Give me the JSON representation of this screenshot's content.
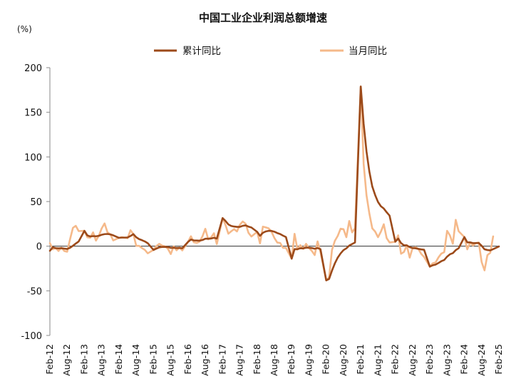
{
  "chart_data": {
    "type": "line",
    "title": "中国工业企业利润总额增速",
    "unit": "(%)",
    "ylim": [
      -100,
      200
    ],
    "yticks": [
      200,
      150,
      100,
      50,
      0,
      -50,
      -100
    ],
    "xtick_labels": [
      "Feb-12",
      "Aug-12",
      "Feb-13",
      "Aug-13",
      "Feb-14",
      "Aug-14",
      "Feb-15",
      "Aug-15",
      "Feb-16",
      "Aug-16",
      "Feb-17",
      "Aug-17",
      "Feb-18",
      "Aug-18",
      "Feb-19",
      "Aug-19",
      "Feb-20",
      "Aug-20",
      "Feb-21",
      "Aug-21",
      "Feb-22",
      "Aug-22",
      "Feb-23",
      "Aug-23",
      "Feb-24",
      "Aug-24",
      "Feb-25"
    ],
    "x_start": "2012-02",
    "x_end": "2025-02",
    "legend_position": "top",
    "series": [
      {
        "name": "累计同比",
        "color": "#9c4a1a",
        "points": [
          [
            "2012-02",
            -5.2
          ],
          [
            "2012-03",
            -1.3
          ],
          [
            "2012-04",
            -2.2
          ],
          [
            "2012-05",
            -2.4
          ],
          [
            "2012-06",
            -2.2
          ],
          [
            "2012-07",
            -2.7
          ],
          [
            "2012-08",
            -3.1
          ],
          [
            "2012-09",
            -1.8
          ],
          [
            "2012-10",
            0.5
          ],
          [
            "2012-11",
            3.0
          ],
          [
            "2012-12",
            5.3
          ],
          [
            "2013-02",
            17.2
          ],
          [
            "2013-03",
            12.1
          ],
          [
            "2013-04",
            10.9
          ],
          [
            "2013-05",
            11.3
          ],
          [
            "2013-06",
            11.1
          ],
          [
            "2013-07",
            11.6
          ],
          [
            "2013-08",
            12.8
          ],
          [
            "2013-09",
            13.5
          ],
          [
            "2013-10",
            13.7
          ],
          [
            "2013-11",
            13.2
          ],
          [
            "2013-12",
            12.2
          ],
          [
            "2014-02",
            9.4
          ],
          [
            "2014-03",
            9.6
          ],
          [
            "2014-04",
            9.6
          ],
          [
            "2014-05",
            9.8
          ],
          [
            "2014-06",
            11.4
          ],
          [
            "2014-07",
            13.5
          ],
          [
            "2014-08",
            10.0
          ],
          [
            "2014-09",
            7.9
          ],
          [
            "2014-10",
            6.7
          ],
          [
            "2014-11",
            5.3
          ],
          [
            "2014-12",
            3.3
          ],
          [
            "2015-02",
            -4.2
          ],
          [
            "2015-03",
            -2.7
          ],
          [
            "2015-04",
            -1.3
          ],
          [
            "2015-05",
            -0.8
          ],
          [
            "2015-06",
            -0.7
          ],
          [
            "2015-07",
            -1.0
          ],
          [
            "2015-08",
            -1.9
          ],
          [
            "2015-09",
            -1.7
          ],
          [
            "2015-10",
            -2.0
          ],
          [
            "2015-11",
            -1.9
          ],
          [
            "2015-12",
            -2.3
          ],
          [
            "2016-02",
            4.8
          ],
          [
            "2016-03",
            7.4
          ],
          [
            "2016-04",
            6.5
          ],
          [
            "2016-05",
            6.4
          ],
          [
            "2016-06",
            6.2
          ],
          [
            "2016-07",
            6.9
          ],
          [
            "2016-08",
            8.4
          ],
          [
            "2016-09",
            8.4
          ],
          [
            "2016-10",
            8.6
          ],
          [
            "2016-11",
            9.4
          ],
          [
            "2016-12",
            8.5
          ],
          [
            "2017-02",
            31.5
          ],
          [
            "2017-03",
            28.3
          ],
          [
            "2017-04",
            24.4
          ],
          [
            "2017-05",
            22.7
          ],
          [
            "2017-06",
            22.0
          ],
          [
            "2017-07",
            21.6
          ],
          [
            "2017-08",
            21.6
          ],
          [
            "2017-09",
            22.8
          ],
          [
            "2017-10",
            23.3
          ],
          [
            "2017-11",
            21.9
          ],
          [
            "2017-12",
            21.0
          ],
          [
            "2018-02",
            16.1
          ],
          [
            "2018-03",
            11.6
          ],
          [
            "2018-04",
            15.0
          ],
          [
            "2018-05",
            16.5
          ],
          [
            "2018-06",
            17.2
          ],
          [
            "2018-07",
            17.1
          ],
          [
            "2018-08",
            16.2
          ],
          [
            "2018-09",
            14.7
          ],
          [
            "2018-10",
            13.6
          ],
          [
            "2018-11",
            11.8
          ],
          [
            "2018-12",
            10.3
          ],
          [
            "2019-02",
            -14.0
          ],
          [
            "2019-03",
            -3.3
          ],
          [
            "2019-04",
            -3.4
          ],
          [
            "2019-05",
            -2.3
          ],
          [
            "2019-06",
            -2.4
          ],
          [
            "2019-07",
            -1.7
          ],
          [
            "2019-08",
            -1.7
          ],
          [
            "2019-09",
            -2.1
          ],
          [
            "2019-10",
            -2.9
          ],
          [
            "2019-11",
            -2.1
          ],
          [
            "2019-12",
            -3.3
          ],
          [
            "2020-02",
            -38.3
          ],
          [
            "2020-03",
            -36.7
          ],
          [
            "2020-04",
            -27.4
          ],
          [
            "2020-05",
            -19.3
          ],
          [
            "2020-06",
            -12.8
          ],
          [
            "2020-07",
            -8.1
          ],
          [
            "2020-08",
            -4.4
          ],
          [
            "2020-09",
            -2.4
          ],
          [
            "2020-10",
            0.7
          ],
          [
            "2020-11",
            2.4
          ],
          [
            "2020-12",
            4.1
          ],
          [
            "2021-02",
            178.9
          ],
          [
            "2021-03",
            137.3
          ],
          [
            "2021-04",
            106.0
          ],
          [
            "2021-05",
            83.4
          ],
          [
            "2021-06",
            66.9
          ],
          [
            "2021-07",
            57.3
          ],
          [
            "2021-08",
            49.5
          ],
          [
            "2021-09",
            44.7
          ],
          [
            "2021-10",
            42.2
          ],
          [
            "2021-11",
            38.0
          ],
          [
            "2021-12",
            34.3
          ],
          [
            "2022-02",
            5.0
          ],
          [
            "2022-03",
            8.5
          ],
          [
            "2022-04",
            3.5
          ],
          [
            "2022-05",
            1.0
          ],
          [
            "2022-06",
            1.0
          ],
          [
            "2022-07",
            -1.1
          ],
          [
            "2022-08",
            -2.1
          ],
          [
            "2022-09",
            -2.3
          ],
          [
            "2022-10",
            -3.0
          ],
          [
            "2022-11",
            -3.6
          ],
          [
            "2022-12",
            -4.0
          ],
          [
            "2023-02",
            -22.9
          ],
          [
            "2023-03",
            -21.4
          ],
          [
            "2023-04",
            -20.6
          ],
          [
            "2023-05",
            -18.8
          ],
          [
            "2023-06",
            -16.8
          ],
          [
            "2023-07",
            -15.5
          ],
          [
            "2023-08",
            -11.7
          ],
          [
            "2023-09",
            -9.0
          ],
          [
            "2023-10",
            -7.8
          ],
          [
            "2023-11",
            -4.4
          ],
          [
            "2023-12",
            -2.3
          ],
          [
            "2024-02",
            10.2
          ],
          [
            "2024-03",
            4.3
          ],
          [
            "2024-04",
            4.3
          ],
          [
            "2024-05",
            3.4
          ],
          [
            "2024-06",
            3.5
          ],
          [
            "2024-07",
            3.6
          ],
          [
            "2024-08",
            0.5
          ],
          [
            "2024-09",
            -3.5
          ],
          [
            "2024-10",
            -4.3
          ],
          [
            "2024-11",
            -4.7
          ],
          [
            "2024-12",
            -3.3
          ],
          [
            "2025-02",
            -0.3
          ]
        ]
      },
      {
        "name": "当月同比",
        "color": "#f5b98a",
        "points": [
          [
            "2012-02",
            3.5
          ],
          [
            "2012-03",
            -3.5
          ],
          [
            "2012-04",
            -2.0
          ],
          [
            "2012-05",
            -5.3
          ],
          [
            "2012-06",
            -1.7
          ],
          [
            "2012-07",
            -5.4
          ],
          [
            "2012-08",
            -6.2
          ],
          [
            "2012-09",
            7.8
          ],
          [
            "2012-10",
            20.5
          ],
          [
            "2012-11",
            22.8
          ],
          [
            "2012-12",
            16.9
          ],
          [
            "2013-02",
            17.2
          ],
          [
            "2013-03",
            9.9
          ],
          [
            "2013-04",
            9.4
          ],
          [
            "2013-05",
            15.5
          ],
          [
            "2013-06",
            6.3
          ],
          [
            "2013-07",
            11.6
          ],
          [
            "2013-08",
            20.0
          ],
          [
            "2013-09",
            25.5
          ],
          [
            "2013-10",
            15.6
          ],
          [
            "2013-11",
            13.2
          ],
          [
            "2013-12",
            6.5
          ],
          [
            "2014-02",
            9.4
          ],
          [
            "2014-03",
            10.1
          ],
          [
            "2014-04",
            9.6
          ],
          [
            "2014-05",
            8.9
          ],
          [
            "2014-06",
            17.9
          ],
          [
            "2014-07",
            13.5
          ],
          [
            "2014-08",
            0.4
          ],
          [
            "2014-09",
            0.4
          ],
          [
            "2014-10",
            -2.1
          ],
          [
            "2014-11",
            -4.2
          ],
          [
            "2014-12",
            -8.0
          ],
          [
            "2015-02",
            -4.2
          ],
          [
            "2015-03",
            0.2
          ],
          [
            "2015-04",
            2.6
          ],
          [
            "2015-05",
            0.6
          ],
          [
            "2015-06",
            -0.3
          ],
          [
            "2015-07",
            -2.9
          ],
          [
            "2015-08",
            -8.8
          ],
          [
            "2015-09",
            -0.1
          ],
          [
            "2015-10",
            -4.6
          ],
          [
            "2015-11",
            -1.4
          ],
          [
            "2015-12",
            -4.7
          ],
          [
            "2016-02",
            4.8
          ],
          [
            "2016-03",
            11.1
          ],
          [
            "2016-04",
            4.4
          ],
          [
            "2016-05",
            3.7
          ],
          [
            "2016-06",
            5.1
          ],
          [
            "2016-07",
            11.0
          ],
          [
            "2016-08",
            19.5
          ],
          [
            "2016-09",
            7.7
          ],
          [
            "2016-10",
            9.8
          ],
          [
            "2016-11",
            14.5
          ],
          [
            "2016-12",
            2.3
          ],
          [
            "2017-02",
            31.5
          ],
          [
            "2017-03",
            23.8
          ],
          [
            "2017-04",
            14.0
          ],
          [
            "2017-05",
            16.7
          ],
          [
            "2017-06",
            19.1
          ],
          [
            "2017-07",
            16.5
          ],
          [
            "2017-08",
            24.0
          ],
          [
            "2017-09",
            27.7
          ],
          [
            "2017-10",
            25.1
          ],
          [
            "2017-11",
            14.9
          ],
          [
            "2017-12",
            10.8
          ],
          [
            "2018-02",
            16.1
          ],
          [
            "2018-03",
            3.1
          ],
          [
            "2018-04",
            21.9
          ],
          [
            "2018-05",
            21.1
          ],
          [
            "2018-06",
            20.0
          ],
          [
            "2018-07",
            16.2
          ],
          [
            "2018-08",
            9.2
          ],
          [
            "2018-09",
            4.1
          ],
          [
            "2018-10",
            3.6
          ],
          [
            "2018-11",
            -1.8
          ],
          [
            "2018-12",
            -1.9
          ],
          [
            "2019-02",
            -14.0
          ],
          [
            "2019-03",
            13.9
          ],
          [
            "2019-04",
            -3.7
          ],
          [
            "2019-05",
            1.1
          ],
          [
            "2019-06",
            -3.1
          ],
          [
            "2019-07",
            2.6
          ],
          [
            "2019-08",
            -2.0
          ],
          [
            "2019-09",
            -5.3
          ],
          [
            "2019-10",
            -9.9
          ],
          [
            "2019-11",
            5.4
          ],
          [
            "2019-12",
            -6.3
          ],
          [
            "2020-02",
            -38.3
          ],
          [
            "2020-03",
            -34.9
          ],
          [
            "2020-04",
            -4.3
          ],
          [
            "2020-05",
            6.0
          ],
          [
            "2020-06",
            11.5
          ],
          [
            "2020-07",
            19.6
          ],
          [
            "2020-08",
            19.1
          ],
          [
            "2020-09",
            10.1
          ],
          [
            "2020-10",
            28.2
          ],
          [
            "2020-11",
            15.5
          ],
          [
            "2020-12",
            20.1
          ],
          [
            "2021-02",
            178.9
          ],
          [
            "2021-03",
            92.3
          ],
          [
            "2021-04",
            57.0
          ],
          [
            "2021-05",
            36.4
          ],
          [
            "2021-06",
            20.0
          ],
          [
            "2021-07",
            16.4
          ],
          [
            "2021-08",
            10.1
          ],
          [
            "2021-09",
            16.3
          ],
          [
            "2021-10",
            24.6
          ],
          [
            "2021-11",
            9.0
          ],
          [
            "2021-12",
            4.2
          ],
          [
            "2022-02",
            5.0
          ],
          [
            "2022-03",
            12.2
          ],
          [
            "2022-04",
            -8.5
          ],
          [
            "2022-05",
            -6.5
          ],
          [
            "2022-06",
            0.8
          ],
          [
            "2022-07",
            -12.8
          ],
          [
            "2022-08",
            -2.1
          ],
          [
            "2022-09",
            -1.0
          ],
          [
            "2022-10",
            -3.0
          ],
          [
            "2022-11",
            -8.6
          ],
          [
            "2022-12",
            -12.0
          ],
          [
            "2023-02",
            -22.9
          ],
          [
            "2023-03",
            -19.2
          ],
          [
            "2023-04",
            -18.2
          ],
          [
            "2023-05",
            -12.6
          ],
          [
            "2023-06",
            -8.3
          ],
          [
            "2023-07",
            -6.7
          ],
          [
            "2023-08",
            17.2
          ],
          [
            "2023-09",
            11.9
          ],
          [
            "2023-10",
            2.7
          ],
          [
            "2023-11",
            29.5
          ],
          [
            "2023-12",
            16.8
          ],
          [
            "2024-02",
            10.2
          ],
          [
            "2024-03",
            -3.5
          ],
          [
            "2024-04",
            4.0
          ],
          [
            "2024-05",
            0.7
          ],
          [
            "2024-06",
            3.6
          ],
          [
            "2024-07",
            4.1
          ],
          [
            "2024-08",
            -17.8
          ],
          [
            "2024-09",
            -27.1
          ],
          [
            "2024-10",
            -10.0
          ],
          [
            "2024-11",
            -7.3
          ],
          [
            "2024-12",
            11.0
          ]
        ]
      }
    ]
  }
}
